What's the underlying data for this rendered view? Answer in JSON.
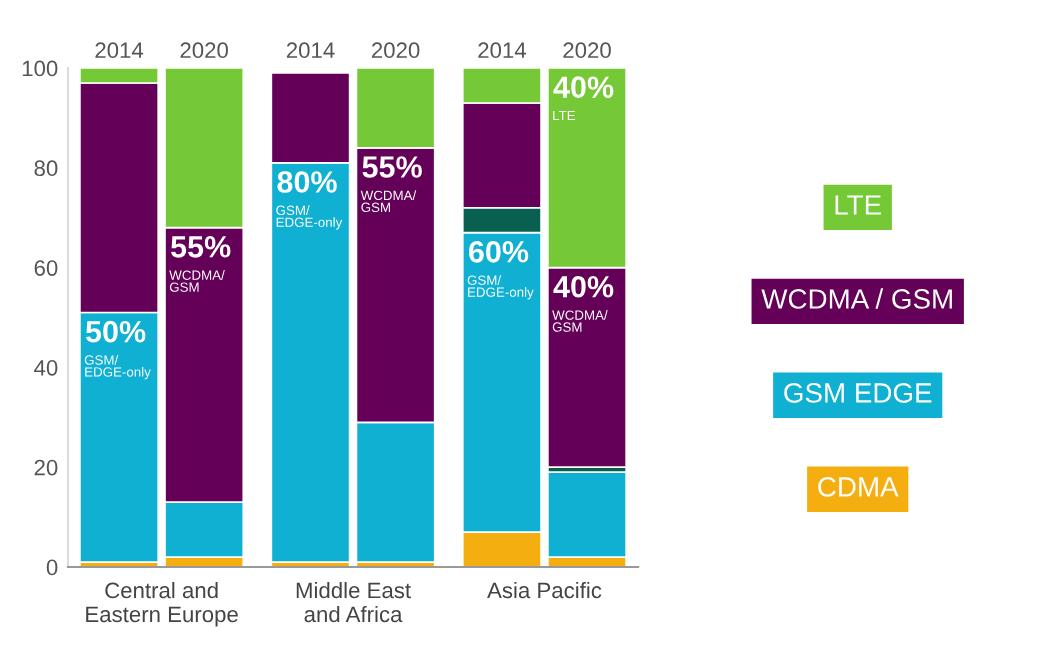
{
  "chart_data": {
    "type": "bar",
    "stacked": true,
    "categories": [
      "2014",
      "2020",
      "2014",
      "2020",
      "2014",
      "2020"
    ],
    "series": [
      {
        "name": "CDMA",
        "color": "#f5ae10",
        "values": [
          1,
          2,
          1,
          1,
          7,
          2
        ]
      },
      {
        "name": "GSM EDGE",
        "color": "#0fb0d2",
        "values": [
          50,
          11,
          80,
          28,
          60,
          17
        ],
        "value_labels": [
          "50%\nGSM/\nEDGE-only",
          null,
          "80%\nGSM/\nEDGE-only",
          null,
          "60%\nGSM/\nEDGE-only",
          null
        ]
      },
      {
        "color": "#0a6050",
        "values": [
          null,
          null,
          null,
          null,
          5,
          1
        ]
      },
      {
        "name": "WCDMA / GSM",
        "color": "#640058",
        "values": [
          46,
          55,
          18,
          55,
          21,
          40
        ],
        "value_labels": [
          null,
          "55%\nWCDMA/\nGSM",
          null,
          "55%\nWCDMA/\nGSM",
          null,
          "40%\nWCDMA/\nGSM"
        ]
      },
      {
        "name": "LTE",
        "color": "#76c936",
        "values": [
          3,
          32,
          null,
          16,
          7,
          40
        ],
        "value_labels": [
          null,
          null,
          null,
          null,
          null,
          "40%\nLTE"
        ]
      }
    ],
    "annotations": [
      "Central and\nEastern Europe",
      "Middle East\nand Africa",
      "Asia Pacific"
    ],
    "ylim": [
      0,
      100
    ],
    "yticks": [
      0,
      20,
      40,
      60,
      80,
      100
    ],
    "legend": "right"
  }
}
